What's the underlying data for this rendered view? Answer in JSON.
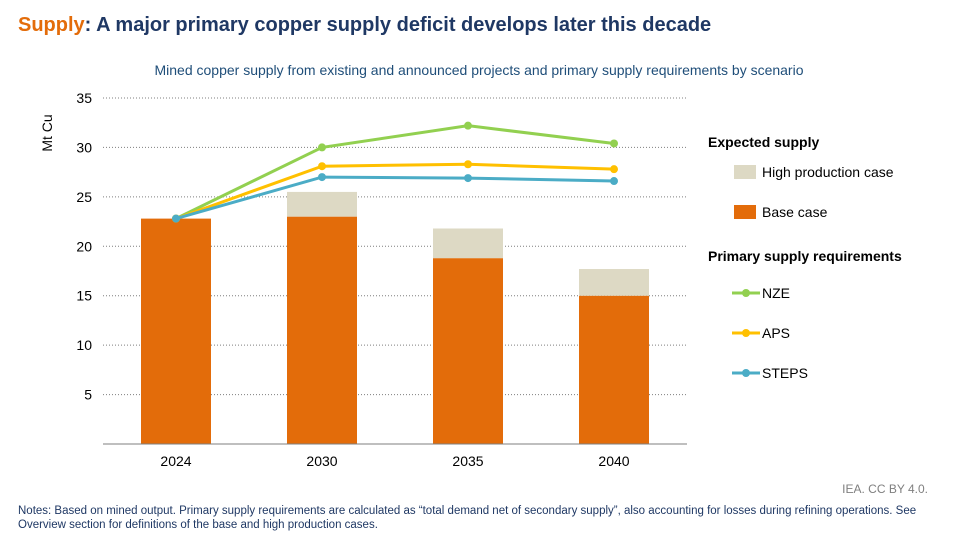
{
  "header": {
    "title_keyword": "Supply",
    "title_sep": ": ",
    "title_rest": "A major primary copper supply deficit develops later this decade"
  },
  "chart_data": {
    "type": "bar",
    "title": "Mined copper supply from existing and announced projects and primary supply requirements by scenario",
    "ylabel": "Mt Cu",
    "xlabel": "",
    "ylim": [
      0,
      35
    ],
    "yticks": [
      5,
      10,
      15,
      20,
      25,
      30,
      35
    ],
    "grid": true,
    "legend_position": "right",
    "categories": [
      "2024",
      "2030",
      "2035",
      "2040"
    ],
    "stacked_bars": [
      {
        "name": "Base case",
        "values": [
          22.8,
          23.0,
          18.8,
          15.0
        ],
        "color": "#e36c0a"
      },
      {
        "name": "High production case",
        "values": [
          0,
          2.5,
          3.0,
          2.7
        ],
        "color": "#ddd9c4"
      }
    ],
    "series": [
      {
        "name": "NZE",
        "values": [
          22.8,
          30.0,
          32.2,
          30.4
        ],
        "color": "#92d050"
      },
      {
        "name": "APS",
        "values": [
          22.8,
          28.1,
          28.3,
          27.8
        ],
        "color": "#ffc000"
      },
      {
        "name": "STEPS",
        "values": [
          22.8,
          27.0,
          26.9,
          26.6
        ],
        "color": "#4bacc6"
      }
    ]
  },
  "legend": {
    "expected_supply_heading": "Expected supply",
    "primary_heading": "Primary supply requirements",
    "items": [
      {
        "label": "High production case",
        "color": "#ddd9c4"
      },
      {
        "label": "Base case",
        "color": "#e36c0a"
      },
      {
        "label": "NZE",
        "color": "#92d050"
      },
      {
        "label": "APS",
        "color": "#ffc000"
      },
      {
        "label": "STEPS",
        "color": "#4bacc6"
      }
    ]
  },
  "credit": "IEA. CC BY 4.0.",
  "notes": "Notes: Based on mined output. Primary supply requirements are calculated as “total demand net of secondary supply”, also accounting for losses during refining operations. See Overview section for definitions of the base and high production cases."
}
